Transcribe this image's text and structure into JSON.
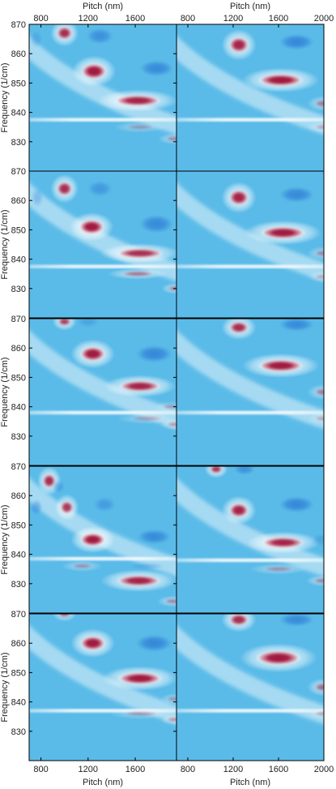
{
  "chart_data": {
    "type": "heatmap",
    "layout": {
      "rows": 5,
      "columns": 2
    },
    "x_axis": {
      "label": "Pitch (nm)",
      "left_column": {
        "range": [
          700,
          1950
        ],
        "ticks": [
          800,
          1200,
          1600
        ]
      },
      "right_column": {
        "range": [
          700,
          2000
        ],
        "ticks": [
          800,
          1200,
          1600,
          2000
        ]
      },
      "shown_on": "top and bottom"
    },
    "y_axis": {
      "label": "Frequency (1/cm)",
      "range": [
        820,
        870
      ],
      "ticks": [
        830,
        840,
        850,
        860,
        870
      ]
    },
    "colormap": [
      "#2f7fd6",
      "#5bbbe8",
      "#ffffff",
      "#e07a8c",
      "#a0153e"
    ],
    "baseline_color": "#5bbbe8",
    "panels": [
      {
        "row": 0,
        "col": 0,
        "line_y": 837.5,
        "blobs": [
          {
            "sign": 1,
            "x": 1000,
            "y": 867,
            "wx": 70,
            "wy": 2.4,
            "a": 0.9
          },
          {
            "sign": 1,
            "x": 1250,
            "y": 854,
            "wx": 110,
            "wy": 2.8,
            "a": 1.0
          },
          {
            "sign": 1,
            "x": 1620,
            "y": 844,
            "wx": 200,
            "wy": 2.0,
            "a": 0.95
          },
          {
            "sign": 1,
            "x": 1640,
            "y": 835,
            "wx": 130,
            "wy": 1.0,
            "a": 0.3
          },
          {
            "sign": 1,
            "x": 1930,
            "y": 831,
            "wx": 80,
            "wy": 1.0,
            "a": 0.4
          },
          {
            "sign": -1,
            "x": 1300,
            "y": 866,
            "wx": 110,
            "wy": 2.6,
            "a": 0.75
          },
          {
            "sign": -1,
            "x": 1780,
            "y": 855,
            "wx": 140,
            "wy": 2.6,
            "a": 0.85
          },
          {
            "sign": -1,
            "x": 760,
            "y": 865,
            "wx": 50,
            "wy": 3.0,
            "a": 0.3
          }
        ]
      },
      {
        "row": 0,
        "col": 1,
        "line_y": 837.5,
        "blobs": [
          {
            "sign": 1,
            "x": 1250,
            "y": 863,
            "wx": 90,
            "wy": 2.8,
            "a": 0.95
          },
          {
            "sign": 1,
            "x": 1620,
            "y": 851,
            "wx": 200,
            "wy": 2.2,
            "a": 1.0
          },
          {
            "sign": 1,
            "x": 1990,
            "y": 843,
            "wx": 80,
            "wy": 1.4,
            "a": 0.45
          },
          {
            "sign": 1,
            "x": 1990,
            "y": 835,
            "wx": 80,
            "wy": 1.0,
            "a": 0.3
          },
          {
            "sign": -1,
            "x": 1760,
            "y": 864,
            "wx": 150,
            "wy": 2.6,
            "a": 0.9
          }
        ]
      },
      {
        "row": 1,
        "col": 0,
        "line_y": 837.5,
        "blobs": [
          {
            "sign": 1,
            "x": 1000,
            "y": 864,
            "wx": 70,
            "wy": 2.6,
            "a": 0.9
          },
          {
            "sign": 1,
            "x": 1230,
            "y": 851,
            "wx": 110,
            "wy": 2.6,
            "a": 1.0
          },
          {
            "sign": 1,
            "x": 1640,
            "y": 842,
            "wx": 200,
            "wy": 1.8,
            "a": 0.9
          },
          {
            "sign": 1,
            "x": 1620,
            "y": 835,
            "wx": 150,
            "wy": 1.0,
            "a": 0.55
          },
          {
            "sign": 1,
            "x": 1940,
            "y": 830,
            "wx": 70,
            "wy": 1.0,
            "a": 0.5
          },
          {
            "sign": -1,
            "x": 1300,
            "y": 864,
            "wx": 100,
            "wy": 2.6,
            "a": 0.6
          },
          {
            "sign": -1,
            "x": 1780,
            "y": 852,
            "wx": 140,
            "wy": 3.0,
            "a": 0.85
          },
          {
            "sign": -1,
            "x": 770,
            "y": 861,
            "wx": 50,
            "wy": 3.0,
            "a": 0.35
          }
        ]
      },
      {
        "row": 1,
        "col": 1,
        "line_y": 837.5,
        "blobs": [
          {
            "sign": 1,
            "x": 1250,
            "y": 861,
            "wx": 90,
            "wy": 2.8,
            "a": 0.95
          },
          {
            "sign": 1,
            "x": 1640,
            "y": 849,
            "wx": 200,
            "wy": 2.2,
            "a": 1.0
          },
          {
            "sign": 1,
            "x": 1990,
            "y": 842,
            "wx": 80,
            "wy": 1.2,
            "a": 0.4
          },
          {
            "sign": 1,
            "x": 1990,
            "y": 834,
            "wx": 80,
            "wy": 1.0,
            "a": 0.3
          },
          {
            "sign": -1,
            "x": 1760,
            "y": 862,
            "wx": 150,
            "wy": 2.6,
            "a": 0.85
          }
        ]
      },
      {
        "row": 2,
        "col": 0,
        "line_y": 838,
        "blobs": [
          {
            "sign": 1,
            "x": 1000,
            "y": 869,
            "wx": 60,
            "wy": 1.6,
            "a": 0.8
          },
          {
            "sign": 1,
            "x": 1240,
            "y": 858,
            "wx": 110,
            "wy": 2.6,
            "a": 1.0
          },
          {
            "sign": 1,
            "x": 1640,
            "y": 847,
            "wx": 180,
            "wy": 2.0,
            "a": 0.95
          },
          {
            "sign": 1,
            "x": 1900,
            "y": 840,
            "wx": 80,
            "wy": 1.0,
            "a": 0.3
          },
          {
            "sign": 1,
            "x": 1700,
            "y": 836,
            "wx": 150,
            "wy": 1.0,
            "a": 0.3
          },
          {
            "sign": 1,
            "x": 1930,
            "y": 834,
            "wx": 70,
            "wy": 1.0,
            "a": 0.4
          },
          {
            "sign": -1,
            "x": 1760,
            "y": 858,
            "wx": 150,
            "wy": 2.8,
            "a": 0.9
          },
          {
            "sign": -1,
            "x": 1200,
            "y": 869,
            "wx": 90,
            "wy": 1.8,
            "a": 0.4
          }
        ]
      },
      {
        "row": 2,
        "col": 1,
        "line_y": 838,
        "blobs": [
          {
            "sign": 1,
            "x": 1250,
            "y": 867,
            "wx": 90,
            "wy": 2.2,
            "a": 0.9
          },
          {
            "sign": 1,
            "x": 1620,
            "y": 854,
            "wx": 200,
            "wy": 2.2,
            "a": 1.0
          },
          {
            "sign": 1,
            "x": 1990,
            "y": 845,
            "wx": 80,
            "wy": 1.4,
            "a": 0.45
          },
          {
            "sign": 1,
            "x": 1990,
            "y": 836,
            "wx": 80,
            "wy": 1.0,
            "a": 0.3
          },
          {
            "sign": -1,
            "x": 1760,
            "y": 868,
            "wx": 150,
            "wy": 2.2,
            "a": 0.85
          }
        ]
      },
      {
        "row": 3,
        "col": 0,
        "line_y": 838.5,
        "blobs": [
          {
            "sign": 1,
            "x": 870,
            "y": 865,
            "wx": 60,
            "wy": 2.6,
            "a": 0.9
          },
          {
            "sign": 1,
            "x": 1020,
            "y": 856,
            "wx": 60,
            "wy": 2.4,
            "a": 0.85
          },
          {
            "sign": 1,
            "x": 1240,
            "y": 845,
            "wx": 110,
            "wy": 2.4,
            "a": 1.0
          },
          {
            "sign": 1,
            "x": 1630,
            "y": 831,
            "wx": 190,
            "wy": 2.0,
            "a": 0.95
          },
          {
            "sign": 1,
            "x": 1150,
            "y": 836,
            "wx": 100,
            "wy": 1.0,
            "a": 0.35
          },
          {
            "sign": 1,
            "x": 1920,
            "y": 824,
            "wx": 80,
            "wy": 1.0,
            "a": 0.45
          },
          {
            "sign": -1,
            "x": 760,
            "y": 856,
            "wx": 50,
            "wy": 2.6,
            "a": 0.5
          },
          {
            "sign": -1,
            "x": 950,
            "y": 863,
            "wx": 50,
            "wy": 2.0,
            "a": 0.45
          },
          {
            "sign": -1,
            "x": 1340,
            "y": 857,
            "wx": 90,
            "wy": 2.4,
            "a": 0.55
          },
          {
            "sign": -1,
            "x": 1760,
            "y": 846,
            "wx": 140,
            "wy": 2.4,
            "a": 0.85
          },
          {
            "sign": -1,
            "x": 1700,
            "y": 836,
            "wx": 150,
            "wy": 1.0,
            "a": 0.35
          }
        ]
      },
      {
        "row": 3,
        "col": 1,
        "line_y": 838,
        "blobs": [
          {
            "sign": 1,
            "x": 1050,
            "y": 869,
            "wx": 60,
            "wy": 1.6,
            "a": 0.85
          },
          {
            "sign": 1,
            "x": 1250,
            "y": 855,
            "wx": 90,
            "wy": 2.6,
            "a": 0.95
          },
          {
            "sign": 1,
            "x": 1640,
            "y": 844,
            "wx": 190,
            "wy": 2.0,
            "a": 0.95
          },
          {
            "sign": 1,
            "x": 1600,
            "y": 835,
            "wx": 150,
            "wy": 1.0,
            "a": 0.35
          },
          {
            "sign": 1,
            "x": 1980,
            "y": 831,
            "wx": 80,
            "wy": 1.0,
            "a": 0.45
          },
          {
            "sign": -1,
            "x": 1300,
            "y": 869,
            "wx": 90,
            "wy": 1.8,
            "a": 0.7
          },
          {
            "sign": -1,
            "x": 1760,
            "y": 857,
            "wx": 150,
            "wy": 2.6,
            "a": 0.9
          },
          {
            "sign": -1,
            "x": 1980,
            "y": 845,
            "wx": 80,
            "wy": 2.0,
            "a": 0.35
          }
        ]
      },
      {
        "row": 4,
        "col": 0,
        "line_y": 837,
        "blobs": [
          {
            "sign": 1,
            "x": 1000,
            "y": 870,
            "wx": 60,
            "wy": 1.4,
            "a": 0.6
          },
          {
            "sign": 1,
            "x": 1240,
            "y": 860,
            "wx": 110,
            "wy": 2.6,
            "a": 1.0
          },
          {
            "sign": 1,
            "x": 1640,
            "y": 848,
            "wx": 190,
            "wy": 2.2,
            "a": 1.0
          },
          {
            "sign": 1,
            "x": 1930,
            "y": 841,
            "wx": 70,
            "wy": 1.0,
            "a": 0.35
          },
          {
            "sign": 1,
            "x": 1650,
            "y": 836,
            "wx": 160,
            "wy": 1.0,
            "a": 0.3
          },
          {
            "sign": 1,
            "x": 1930,
            "y": 834,
            "wx": 70,
            "wy": 1.0,
            "a": 0.4
          },
          {
            "sign": -1,
            "x": 1760,
            "y": 860,
            "wx": 150,
            "wy": 2.8,
            "a": 0.9
          }
        ]
      },
      {
        "row": 4,
        "col": 1,
        "line_y": 837,
        "blobs": [
          {
            "sign": 1,
            "x": 1250,
            "y": 868,
            "wx": 90,
            "wy": 2.2,
            "a": 0.9
          },
          {
            "sign": 1,
            "x": 1600,
            "y": 855,
            "wx": 200,
            "wy": 2.6,
            "a": 1.0
          },
          {
            "sign": 1,
            "x": 1990,
            "y": 845,
            "wx": 80,
            "wy": 1.6,
            "a": 0.55
          },
          {
            "sign": 1,
            "x": 1990,
            "y": 836,
            "wx": 80,
            "wy": 1.0,
            "a": 0.3
          },
          {
            "sign": -1,
            "x": 1760,
            "y": 868,
            "wx": 150,
            "wy": 2.2,
            "a": 0.85
          }
        ]
      }
    ]
  }
}
